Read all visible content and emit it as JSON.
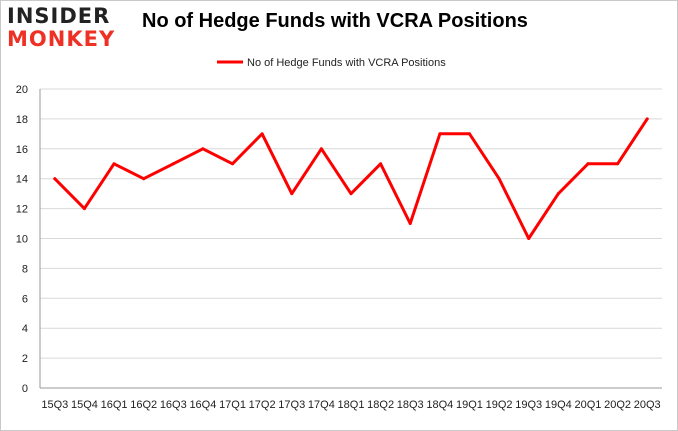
{
  "logo": {
    "line1": "INSIDER",
    "line2": "MONKEY"
  },
  "chart_data": {
    "type": "line",
    "title": "No of Hedge Funds with VCRA Positions",
    "xlabel": "",
    "ylabel": "",
    "ylim": [
      0,
      20
    ],
    "yticks": [
      0,
      2,
      4,
      6,
      8,
      10,
      12,
      14,
      16,
      18,
      20
    ],
    "grid": "horizontal",
    "legend_position": "top-center",
    "categories": [
      "15Q3",
      "15Q4",
      "16Q1",
      "16Q2",
      "16Q3",
      "16Q4",
      "17Q1",
      "17Q2",
      "17Q3",
      "17Q4",
      "18Q1",
      "18Q2",
      "18Q3",
      "18Q4",
      "19Q1",
      "19Q2",
      "19Q3",
      "19Q4",
      "20Q1",
      "20Q2",
      "20Q3"
    ],
    "series": [
      {
        "name": "No of Hedge Funds with VCRA Positions",
        "color": "#ff0000",
        "values": [
          14,
          12,
          15,
          14,
          15,
          16,
          15,
          17,
          13,
          16,
          13,
          15,
          11,
          17,
          17,
          14,
          10,
          13,
          15,
          15,
          18
        ]
      }
    ]
  }
}
